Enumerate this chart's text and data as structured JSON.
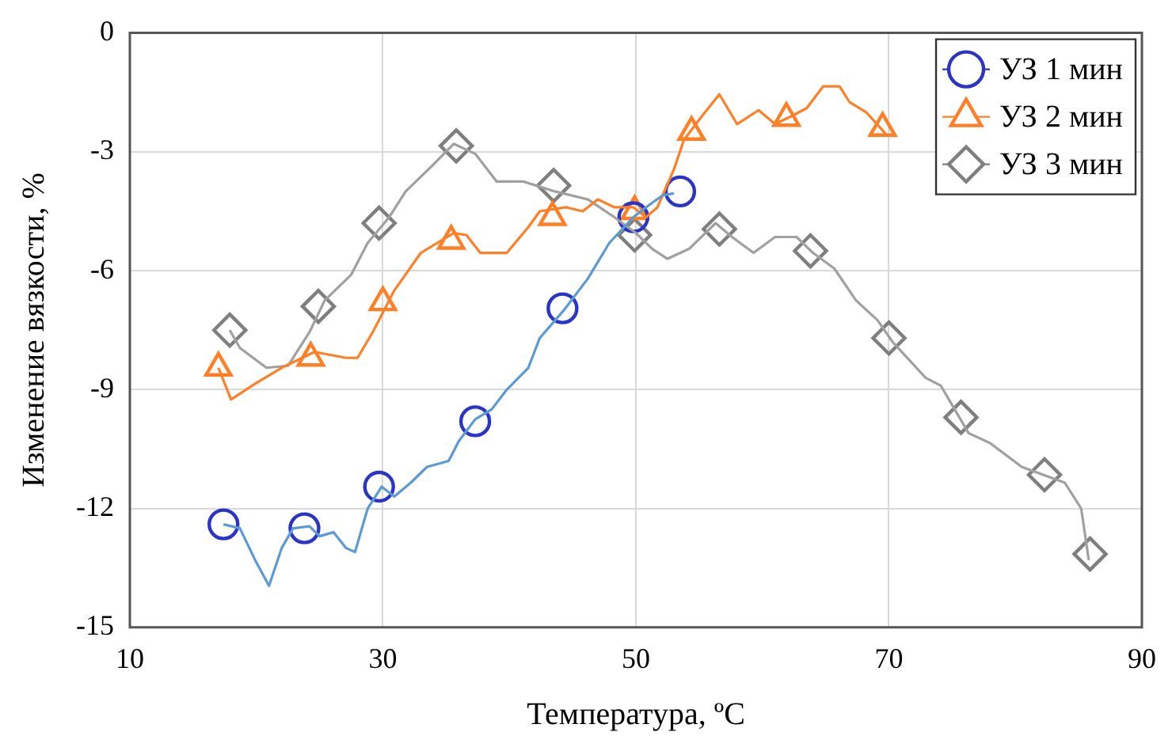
{
  "chart_data": {
    "type": "line",
    "xlabel": "Температура, ºС",
    "ylabel": "Изменение вязкости, %",
    "xlim": [
      10,
      90
    ],
    "xticks": [
      10,
      30,
      50,
      70,
      90
    ],
    "ylim": [
      -15,
      0
    ],
    "yticks": [
      -15,
      -12,
      -9,
      -6,
      -3,
      0
    ],
    "grid": true,
    "legend": "top right",
    "series": [
      {
        "type": "line",
        "color": "#5b9bd5",
        "marker": "none",
        "x": [
          17.4,
          18.7,
          19.9,
          21.0,
          22.0,
          22.9,
          24.2,
          25.0,
          26.1,
          27.1,
          27.8,
          28.8,
          29.9,
          30.9,
          32.2,
          33.5,
          35.2,
          36.0,
          37.3,
          38.6,
          39.8,
          41.5,
          42.4,
          44.3,
          46.2,
          47.9,
          49.8,
          50.8,
          52.1,
          53.0
        ],
        "values": [
          -12.4,
          -12.5,
          -13.3,
          -13.95,
          -13.0,
          -12.5,
          -12.45,
          -12.7,
          -12.6,
          -13.0,
          -13.1,
          -12.0,
          -11.45,
          -11.7,
          -11.35,
          -10.95,
          -10.8,
          -10.3,
          -9.75,
          -9.5,
          -9.0,
          -8.45,
          -7.7,
          -7.0,
          -6.2,
          -5.3,
          -4.65,
          -4.4,
          -4.1,
          -4.05
        ]
      },
      {
        "type": "line",
        "color": "#ff7f27",
        "marker": "none",
        "x": [
          17.0,
          18.0,
          19.9,
          22.0,
          24.6,
          27.1,
          28.0,
          29.2,
          30.9,
          33.0,
          35.6,
          36.6,
          37.7,
          39.8,
          41.5,
          42.4,
          44.5,
          45.8,
          47.0,
          48.3,
          49.8,
          50.8,
          51.7,
          53.0,
          53.8,
          55.1,
          56.6,
          58.0,
          59.7,
          61.0,
          62.3,
          63.5,
          64.8,
          66.1,
          66.9,
          68.2,
          69.9
        ],
        "values": [
          -8.45,
          -9.25,
          -8.85,
          -8.45,
          -8.05,
          -8.2,
          -8.2,
          -7.55,
          -6.5,
          -5.55,
          -5.05,
          -5.1,
          -5.55,
          -5.55,
          -4.9,
          -4.5,
          -4.4,
          -4.5,
          -4.2,
          -4.4,
          -4.4,
          -4.65,
          -4.4,
          -3.45,
          -2.7,
          -2.15,
          -1.55,
          -2.3,
          -1.95,
          -2.3,
          -2.1,
          -1.9,
          -1.35,
          -1.35,
          -1.75,
          -2.0,
          -2.6
        ]
      },
      {
        "type": "line",
        "color": "#a0a0a0",
        "marker": "none",
        "x": [
          17.9,
          18.7,
          20.8,
          22.5,
          24.2,
          25.4,
          27.5,
          28.8,
          30.5,
          31.8,
          33.9,
          35.6,
          37.3,
          39.0,
          41.1,
          43.6,
          46.2,
          48.3,
          50.0,
          51.3,
          52.5,
          54.2,
          56.3,
          57.6,
          59.3,
          61.0,
          62.7,
          64.0,
          65.7,
          67.4,
          69.1,
          70.3,
          72.9,
          74.1,
          76.3,
          78.0,
          80.5,
          82.2,
          83.9,
          85.2,
          85.8
        ],
        "values": [
          -7.5,
          -7.95,
          -8.45,
          -8.4,
          -7.55,
          -6.75,
          -6.1,
          -5.3,
          -4.65,
          -4.0,
          -3.35,
          -2.8,
          -3.05,
          -3.75,
          -3.75,
          -4.0,
          -4.2,
          -4.65,
          -5.05,
          -5.45,
          -5.7,
          -5.45,
          -4.8,
          -5.15,
          -5.55,
          -5.15,
          -5.15,
          -5.55,
          -5.95,
          -6.75,
          -7.25,
          -7.8,
          -8.7,
          -8.9,
          -10.1,
          -10.35,
          -10.95,
          -11.15,
          -11.35,
          -12.0,
          -13.3
        ]
      },
      {
        "type": "scatter",
        "name": "УЗ 1 мин",
        "color": "#2a35c8",
        "marker": "circle",
        "x": [
          17.4,
          23.8,
          29.7,
          37.3,
          44.2,
          49.8,
          53.5
        ],
        "values": [
          -12.4,
          -12.5,
          -11.45,
          -9.8,
          -6.95,
          -4.65,
          -4.0
        ]
      },
      {
        "type": "scatter",
        "name": "УЗ 2 мин",
        "color": "#ff7f27",
        "marker": "triangle",
        "x": [
          17.0,
          24.3,
          30.0,
          35.4,
          43.4,
          49.9,
          54.4,
          61.9,
          69.5
        ],
        "values": [
          -8.45,
          -8.2,
          -6.8,
          -5.25,
          -4.65,
          -4.5,
          -2.5,
          -2.15,
          -2.4
        ]
      },
      {
        "type": "scatter",
        "name": "УЗ 3 мин",
        "color": "#7f7f7f",
        "marker": "diamond",
        "x": [
          17.9,
          24.9,
          29.7,
          35.8,
          43.5,
          49.9,
          56.6,
          63.8,
          70.0,
          75.7,
          82.3,
          85.9
        ],
        "values": [
          -7.5,
          -6.9,
          -4.8,
          -2.85,
          -3.85,
          -5.1,
          -4.95,
          -5.5,
          -7.7,
          -9.7,
          -11.15,
          -13.15
        ]
      }
    ]
  }
}
